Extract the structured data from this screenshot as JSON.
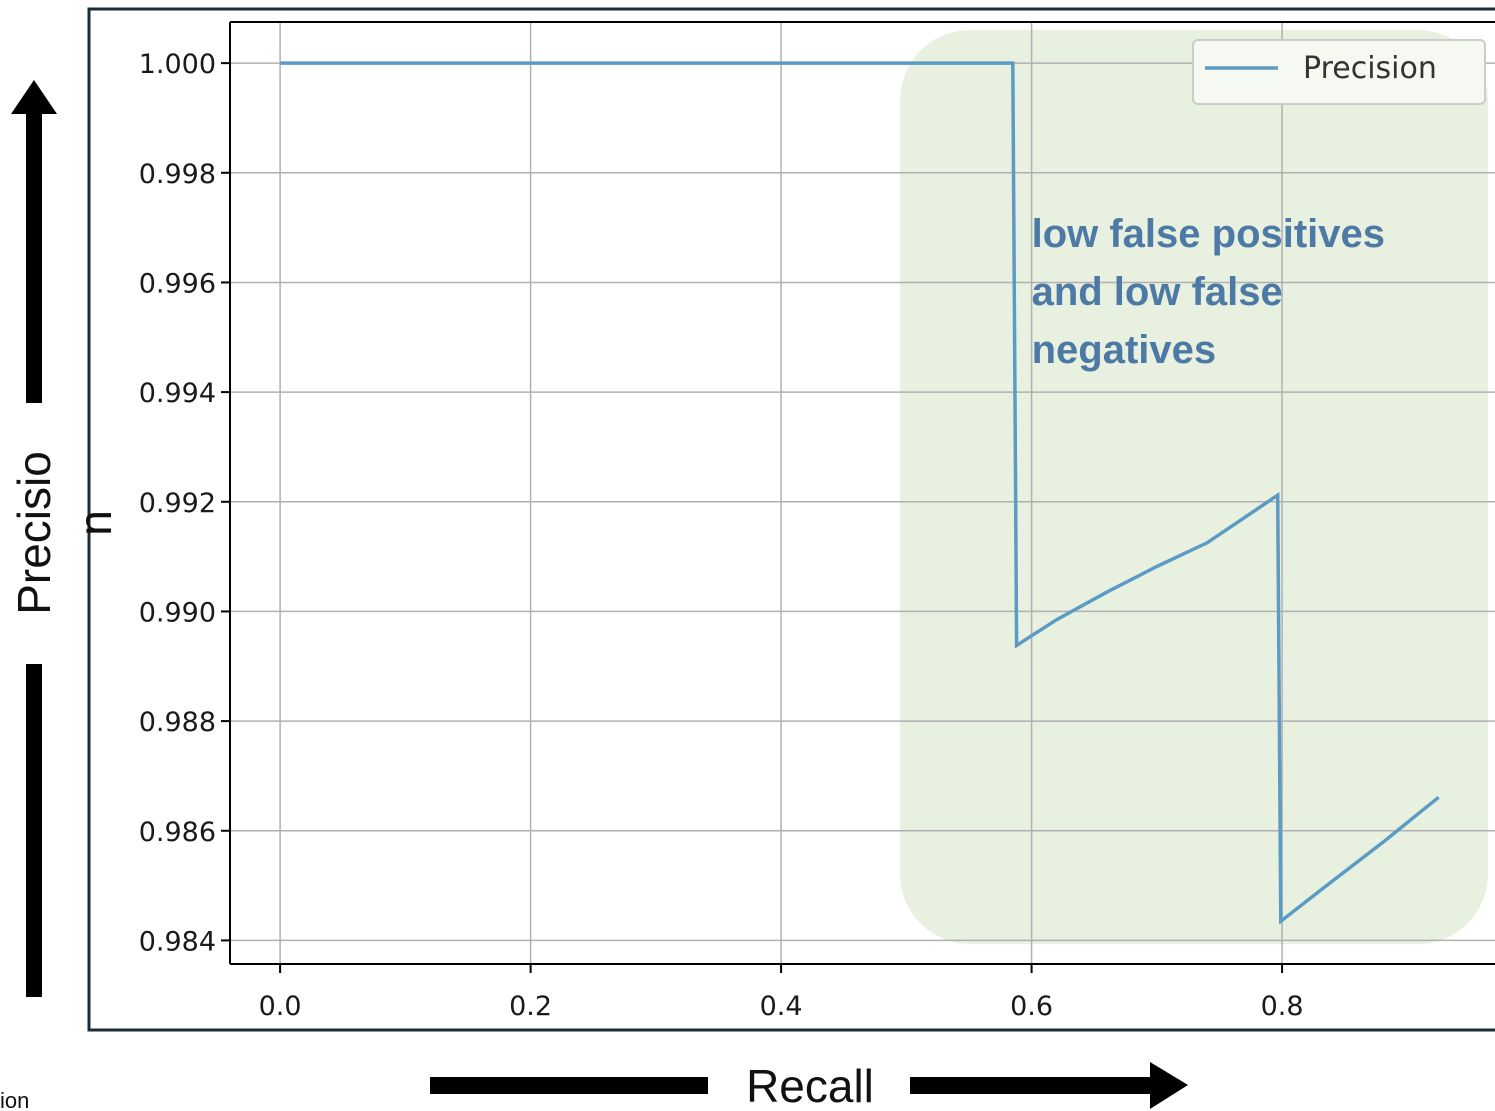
{
  "chart_data": {
    "type": "line",
    "xlabel": "Recall",
    "ylabel": "Precision",
    "xlim": [
      -0.04,
      0.97
    ],
    "ylim": [
      0.98357,
      1.00075
    ],
    "xticks": [
      "0.0",
      "0.2",
      "0.4",
      "0.6",
      "0.8"
    ],
    "yticks": [
      "1.000",
      "0.998",
      "0.996",
      "0.994",
      "0.992",
      "0.990",
      "0.988",
      "0.986",
      "0.984"
    ],
    "grid": true,
    "legend_position": "top-right",
    "series": [
      {
        "name": "Precision",
        "color": "#5b9bc4",
        "x": [
          0.0,
          0.3,
          0.5,
          0.585,
          0.588,
          0.62,
          0.66,
          0.7,
          0.74,
          0.7965,
          0.799,
          0.84,
          0.88,
          0.925
        ],
        "y": [
          1.0,
          1.0,
          1.0,
          1.0,
          0.98938,
          0.98985,
          0.99035,
          0.99082,
          0.99125,
          0.99212,
          0.98435,
          0.98508,
          0.98578,
          0.98661
        ]
      }
    ],
    "highlight_region": {
      "x_from": 0.495,
      "color": "#e8f0e0"
    },
    "annotations": [
      {
        "lines": [
          "low false positives",
          "and low false",
          "negatives"
        ],
        "x": 0.6,
        "y": 0.99665
      }
    ]
  },
  "ylabel_display": {
    "main": "Precisio",
    "overflow": "n"
  },
  "footnote": "ion",
  "colors": {
    "frame": "#1c2b3a",
    "axes": "#000000",
    "grid": "#b0b0b0",
    "arrows": "#000000"
  }
}
